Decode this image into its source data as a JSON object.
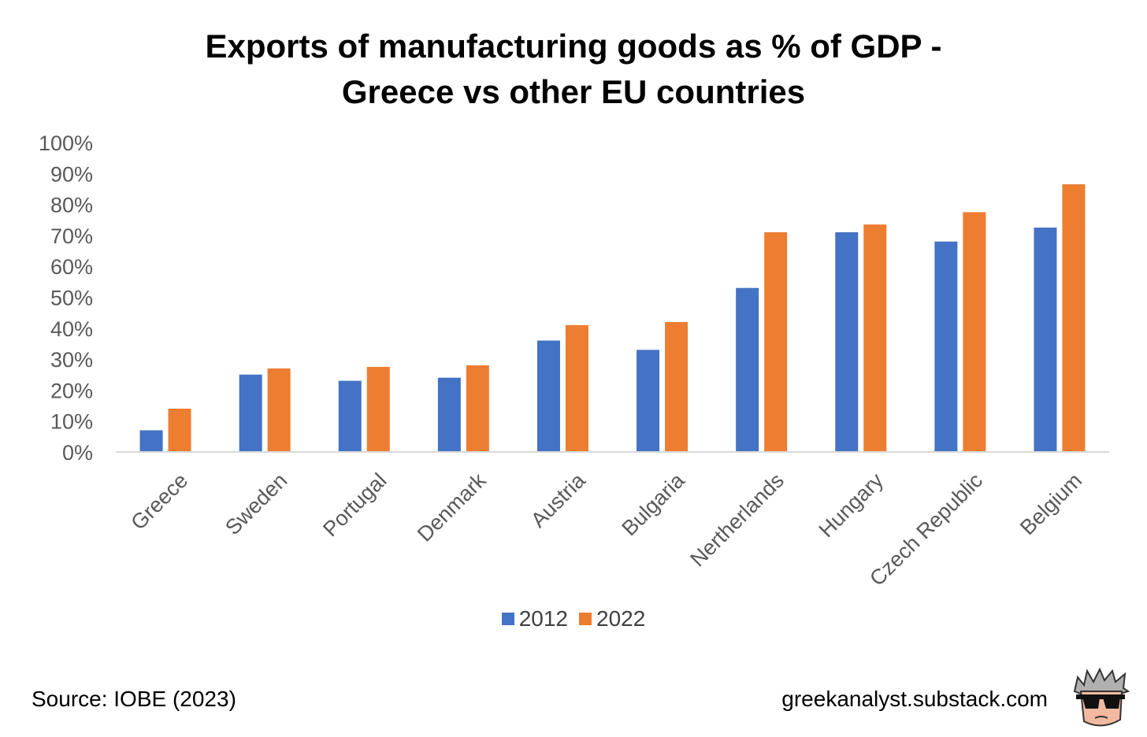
{
  "title_lines": [
    "Exports of manufacturing goods as % of GDP -",
    "Greece vs other EU countries"
  ],
  "chart_data": {
    "type": "bar",
    "title": "Exports of manufacturing goods as % of GDP - Greece vs other EU countries",
    "categories": [
      "Greece",
      "Sweden",
      "Portugal",
      "Denmark",
      "Austria",
      "Bulgaria",
      "Nertherlands",
      "Hungary",
      "Czech Republic",
      "Belgium"
    ],
    "series": [
      {
        "name": "2012",
        "color": "#4472C4",
        "values": [
          7,
          25,
          23,
          24,
          36,
          33,
          53,
          71,
          68,
          72.5
        ]
      },
      {
        "name": "2022",
        "color": "#ED7D31",
        "values": [
          14,
          27,
          27.5,
          28,
          41,
          42,
          71,
          73.5,
          77.5,
          86.5
        ]
      }
    ],
    "ylim": [
      0,
      100
    ],
    "yticks": [
      "0%",
      "10%",
      "20%",
      "30%",
      "40%",
      "50%",
      "60%",
      "70%",
      "80%",
      "90%",
      "100%"
    ],
    "xlabel": "",
    "ylabel": "",
    "grid": false,
    "legend_position": "bottom"
  },
  "footer": {
    "source": "Source: IOBE (2023)",
    "site": "greekanalyst.substack.com",
    "logo_icon": "cartoon-face-sunglasses-icon"
  }
}
